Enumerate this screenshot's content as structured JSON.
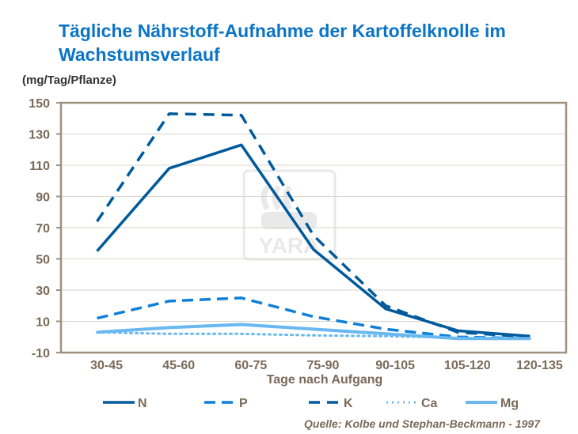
{
  "title": "Tägliche Nährstoff-Aufnahme der Kartoffelknolle im Wachstumsverlauf",
  "source": "Quelle: Kolbe und Stephan-Beckmann  - 1997",
  "watermark": "YARA",
  "chart_data": {
    "type": "line",
    "title": "Tägliche Nährstoff-Aufnahme der Kartoffelknolle im Wachstumsverlauf",
    "ylabel": "(mg/Tag/Pflanze)",
    "xlabel": "Tage nach Aufgang",
    "ylim": [
      -10,
      150
    ],
    "yticks": [
      150,
      130,
      110,
      90,
      70,
      50,
      30,
      10,
      -10
    ],
    "grid": true,
    "legend": "bottom",
    "categories": [
      "30-45",
      "45-60",
      "60-75",
      "75-90",
      "90-105",
      "105-120",
      "120-135"
    ],
    "series": [
      {
        "name": "N",
        "values": [
          55,
          108,
          123,
          56,
          18,
          4,
          0.5
        ],
        "color": "#005a9c",
        "style": "solid"
      },
      {
        "name": "P",
        "values": [
          12,
          23,
          25,
          13,
          5,
          0,
          -1
        ],
        "color": "#0f7fd8",
        "style": "dash"
      },
      {
        "name": "K",
        "values": [
          74,
          143,
          142,
          65,
          20,
          3,
          0
        ],
        "color": "#005a9c",
        "style": "dashdot"
      },
      {
        "name": "Ca",
        "values": [
          3,
          2,
          2,
          1,
          0.5,
          -0.5,
          -1
        ],
        "color": "#6ab8f0",
        "style": "dot"
      },
      {
        "name": "Mg",
        "values": [
          3,
          6,
          8,
          5,
          2,
          -1,
          -1
        ],
        "color": "#6ab8f0",
        "style": "solid"
      }
    ]
  }
}
